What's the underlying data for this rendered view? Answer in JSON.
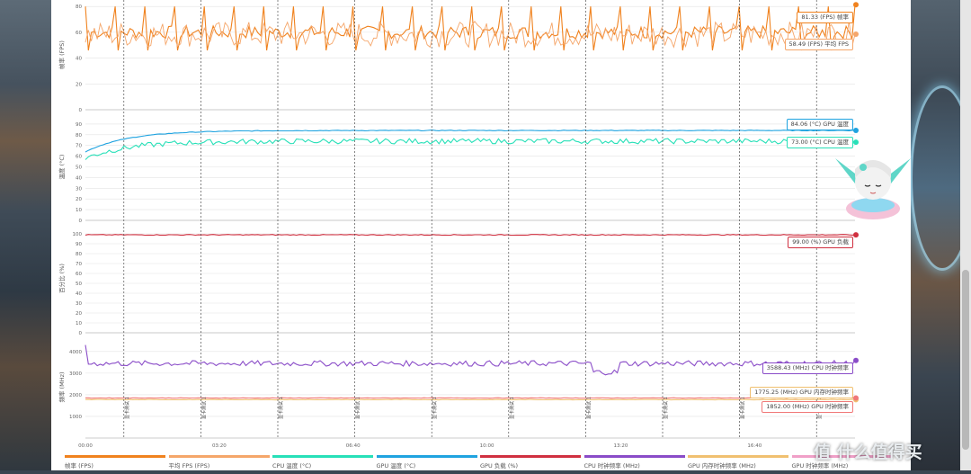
{
  "watermark": "值 什么值得买",
  "chart_data": [
    {
      "type": "line",
      "ylabel": "帧率 (FPS)",
      "ylim": [
        0,
        85
      ],
      "yticks": [
        0,
        20,
        40,
        60,
        80
      ],
      "series": [
        {
          "name": "帧率 (FPS)",
          "color": "#f0821e",
          "last": 81.33,
          "unit": "(FPS)",
          "typical": 60,
          "tag": "81.33 (FPS) 帧率"
        },
        {
          "name": "平均 FPS (FPS)",
          "color": "#f5a66a",
          "last": 58.49,
          "unit": "(FPS)",
          "typical": 58.49,
          "tag": "58.49 (FPS) 平均 FPS"
        }
      ]
    },
    {
      "type": "line",
      "ylabel": "温度 (°C)",
      "ylim": [
        0,
        100
      ],
      "yticks": [
        0,
        10,
        20,
        30,
        40,
        50,
        60,
        70,
        80,
        90
      ],
      "series": [
        {
          "name": "GPU 温度 (°C)",
          "color": "#1fa3e0",
          "last": 84.06,
          "start": 64,
          "plateau": 84,
          "tag": "84.06 (°C) GPU 温度"
        },
        {
          "name": "CPU 温度 (°C)",
          "color": "#27e0b8",
          "last": 73.0,
          "start": 58,
          "plateau": 74,
          "tag": "73.00 (°C) CPU 温度"
        }
      ]
    },
    {
      "type": "line",
      "ylabel": "百分比 (%)",
      "ylim": [
        0,
        110
      ],
      "yticks": [
        0,
        10,
        20,
        30,
        40,
        50,
        60,
        70,
        80,
        90,
        100
      ],
      "series": [
        {
          "name": "GPU 负载 (%)",
          "color": "#d03040",
          "last": 99.0,
          "typical": 99,
          "tag": "99.00 (%) GPU 负载"
        }
      ]
    },
    {
      "type": "line",
      "ylabel": "频率 (MHz)",
      "ylim": [
        0,
        4700
      ],
      "yticks": [
        1000,
        2000,
        3000,
        4000
      ],
      "ytick_labels": [
        "1000",
        "2000",
        "3000",
        "4000"
      ],
      "series": [
        {
          "name": "CPU 时钟频率 (MHz)",
          "color": "#8a4cc8",
          "last": 3588.43,
          "typical": 3450,
          "tag": "3588.43 (MHz) CPU 时钟频率"
        },
        {
          "name": "GPU 内存时钟频率 (MHz)",
          "color": "#f0c070",
          "last": 1775.25,
          "typical": 1775,
          "tag": "1775.25 (MHz) GPU 内存时钟频率"
        },
        {
          "name": "GPU 时钟频率 (MHz)",
          "color": "#f07878",
          "last": 1852.0,
          "typical": 1852,
          "tag": "1852.00 (MHz) GPU 时钟频率"
        }
      ]
    }
  ],
  "x_axis": {
    "ticks": [
      "00:00",
      "03:20",
      "06:40",
      "10:00",
      "13:20",
      "16:40"
    ],
    "marker_label": "显卡测试 1",
    "marker_count": 10
  },
  "legend": [
    {
      "label": "帧率 (FPS)",
      "color": "#f0821e"
    },
    {
      "label": "平均 FPS (FPS)",
      "color": "#f5a66a"
    },
    {
      "label": "CPU 温度 (°C)",
      "color": "#27e0b8"
    },
    {
      "label": "GPU 温度 (°C)",
      "color": "#1fa3e0"
    },
    {
      "label": "GPU 负载 (%)",
      "color": "#d03040"
    },
    {
      "label": "CPU 时钟频率 (MHz)",
      "color": "#8a4cc8"
    },
    {
      "label": "GPU 内存时钟频率 (MHz)",
      "color": "#f0c070"
    },
    {
      "label": "GPU 时钟频率 (MHz)",
      "color": "#f0a0c8"
    }
  ]
}
